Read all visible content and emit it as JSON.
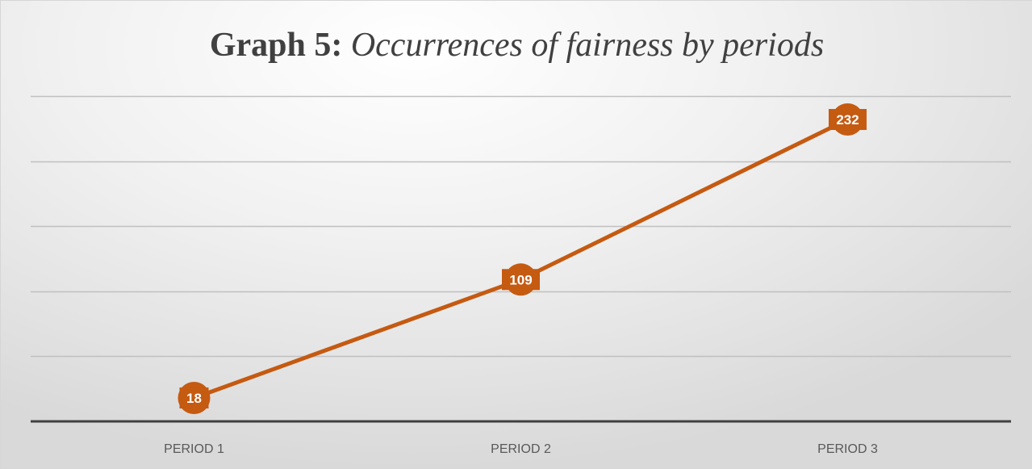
{
  "chart_data": {
    "type": "line",
    "title_prefix": "Graph 5:",
    "title_rest": "Occurrences of fairness by periods",
    "categories": [
      "PERIOD 1",
      "PERIOD 2",
      "PERIOD 3"
    ],
    "series": [
      {
        "values": [
          18,
          109,
          232
        ],
        "color": "#c55a11"
      }
    ],
    "ylim": [
      0,
      250
    ],
    "grid_step": 50,
    "grid": true,
    "data_labels": true,
    "colors": {
      "line": "#c55a11",
      "grid": "#c0c0c0",
      "axis": "#404040",
      "title": "#404040",
      "tick_label": "#595959"
    }
  }
}
